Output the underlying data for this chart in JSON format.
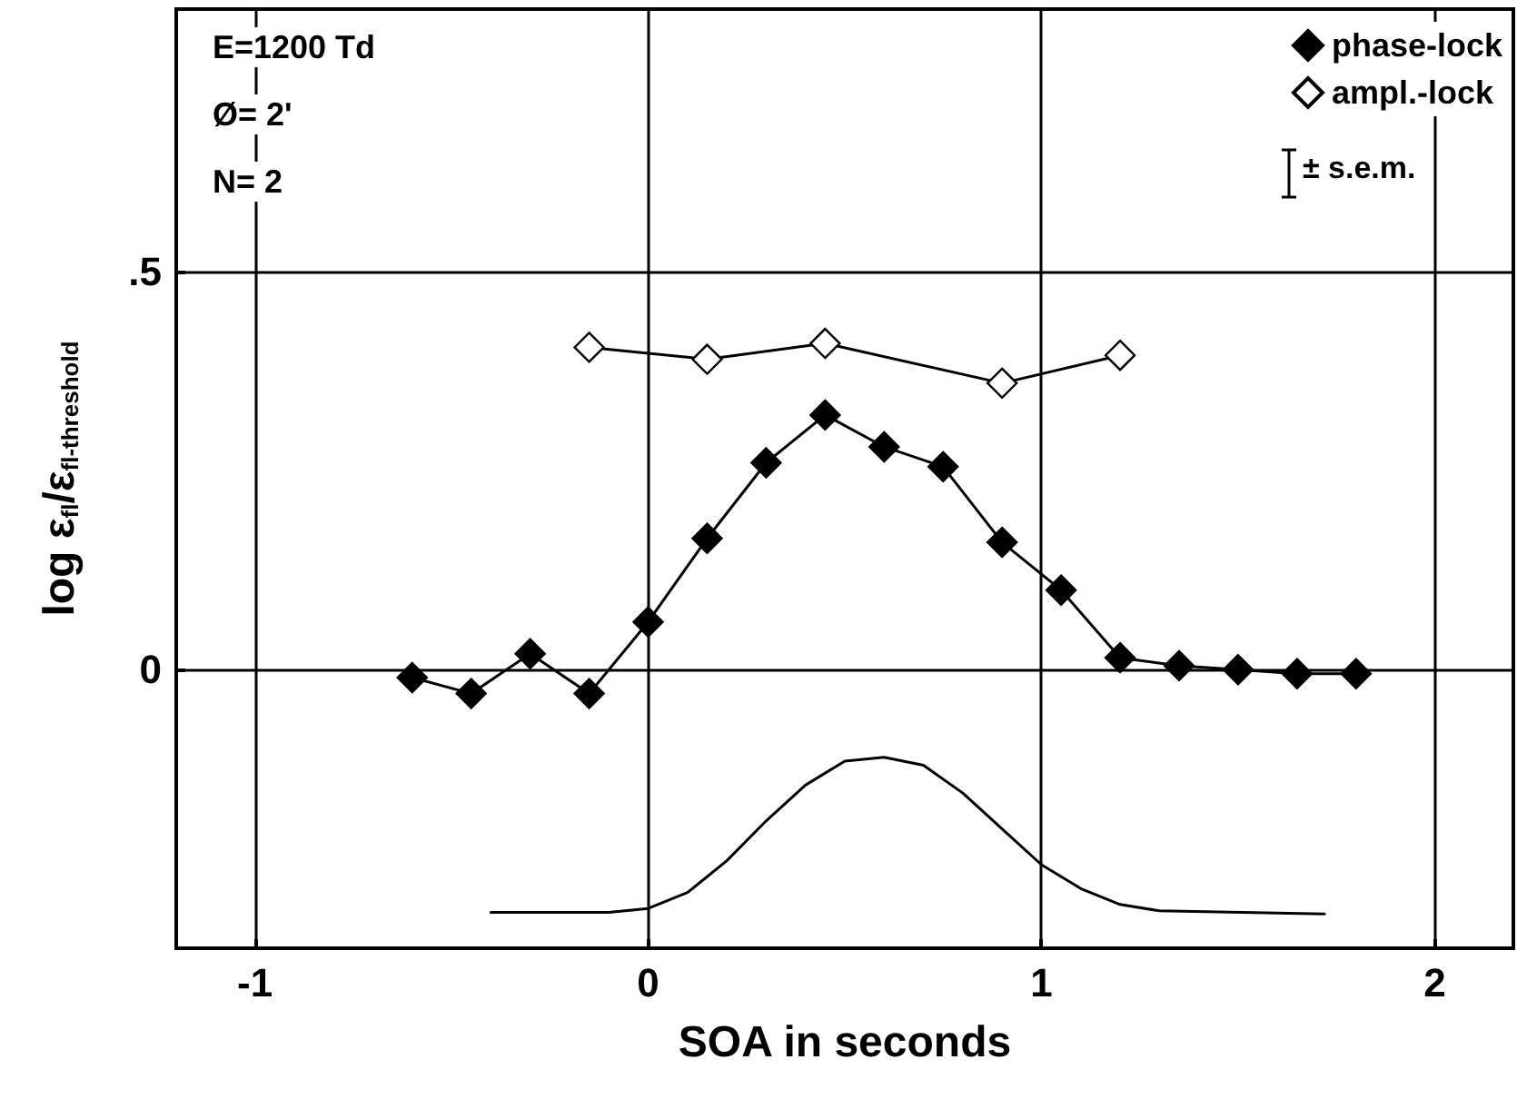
{
  "chart_data": {
    "type": "line",
    "xlabel": "SOA in seconds",
    "ylabel": "log ε$_{fl}$/ε$_{fl-threshold}$",
    "annotations": [
      "E=1200 Td",
      "Ø= 2'",
      "N= 2",
      "± s.e.m."
    ],
    "xlim": [
      -1.2,
      2.2
    ],
    "ylim": [
      -0.35,
      0.83
    ],
    "xticks": [
      -1,
      0,
      1,
      2
    ],
    "yticks": [
      {
        "value": 0,
        "label": "0"
      },
      {
        "value": 0.5,
        "label": ".5"
      }
    ],
    "grid": true,
    "legend": "top right",
    "marker": "diamond",
    "line_style": "solid",
    "series": [
      {
        "name": "phase-lock",
        "color": "#000000",
        "x": [
          -0.6,
          -0.45,
          -0.3,
          -0.15,
          0,
          0.15,
          0.3,
          0.45,
          0.6,
          0.75,
          0.9,
          1.05,
          1.2,
          1.35,
          1.5,
          1.65,
          1.8
        ],
        "values": [
          -0.01,
          -0.03,
          0.02,
          -0.03,
          0.06,
          0.165,
          0.26,
          0.32,
          0.28,
          0.255,
          0.16,
          0.1,
          0.015,
          0.005,
          0,
          -0.005,
          -0.005
        ]
      },
      {
        "name": "ampl.-lock",
        "color": "#ffffff",
        "x": [
          -0.15,
          0.15,
          0.45,
          0.9,
          1.2
        ],
        "values": [
          0.405,
          0.39,
          0.41,
          0.36,
          0.395
        ]
      },
      {
        "color": "#000000",
        "marker": "none",
        "x": [
          -0.4,
          -0.1,
          0,
          0.1,
          0.2,
          0.3,
          0.4,
          0.5,
          0.6,
          0.7,
          0.8,
          0.9,
          1,
          1.1,
          1.2,
          1.3,
          1.72
        ],
        "values": [
          -0.305,
          -0.305,
          -0.3,
          -0.28,
          -0.24,
          -0.19,
          -0.145,
          -0.115,
          -0.11,
          -0.12,
          -0.155,
          -0.2,
          -0.245,
          -0.275,
          -0.295,
          -0.303,
          -0.307
        ]
      }
    ]
  }
}
